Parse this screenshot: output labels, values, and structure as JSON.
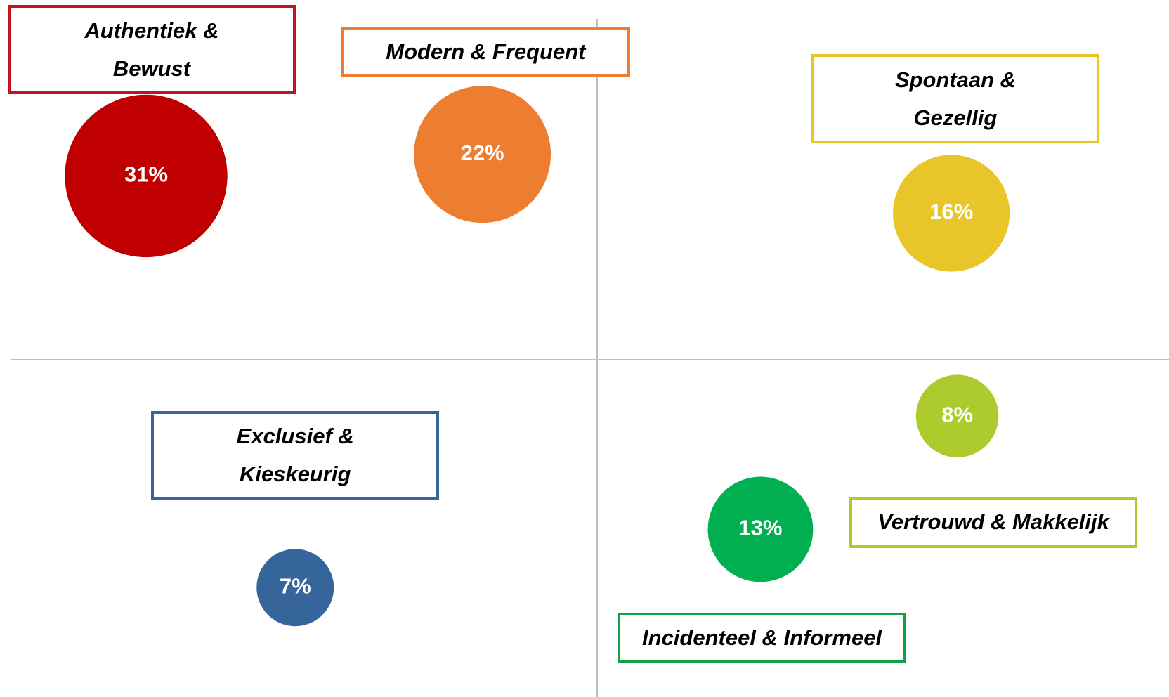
{
  "chart_data": {
    "type": "bubble",
    "series": [
      {
        "name": "Authentiek &\nBewust",
        "values": [
          31
        ],
        "value_labels": [
          "31%"
        ],
        "color": "#c00000",
        "border": "#c0141e"
      },
      {
        "name": "Modern & Frequent",
        "values": [
          22
        ],
        "value_labels": [
          "22%"
        ],
        "color": "#ed7d31",
        "border": "#ed7d31"
      },
      {
        "name": "Spontaan &\nGezellig",
        "values": [
          16
        ],
        "value_labels": [
          "16%"
        ],
        "color": "#e8c62a",
        "border": "#e8c62a"
      },
      {
        "name": "Exclusief &\nKieskeurig",
        "values": [
          7
        ],
        "value_labels": [
          "7%"
        ],
        "color": "#35659a",
        "border": "#35659a"
      },
      {
        "name": "Vertrouwd & Makkelijk",
        "values": [
          8
        ],
        "value_labels": [
          "8%"
        ],
        "color": "#aecb2e",
        "border": "#aecb2e"
      },
      {
        "name": "Incidenteel & Informeel",
        "values": [
          13
        ],
        "value_labels": [
          "13%"
        ],
        "color": "#00b050",
        "border": "#14a04a"
      }
    ]
  }
}
